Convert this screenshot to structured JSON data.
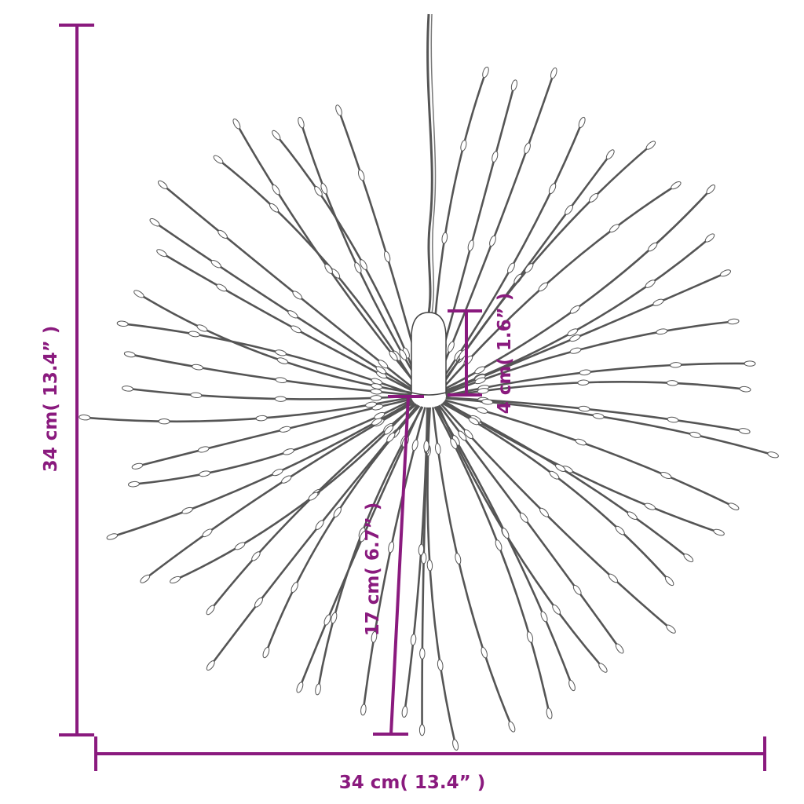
{
  "dimensions": {
    "height_label": "34 cm( 13.4” )",
    "width_label": "34 cm( 13.4” )",
    "cap_label": "4 cm( 1.6” )",
    "strand_label": "17 cm( 6.7” )"
  },
  "colors": {
    "dimension": "#8a1a7e",
    "strand": "#555555"
  }
}
